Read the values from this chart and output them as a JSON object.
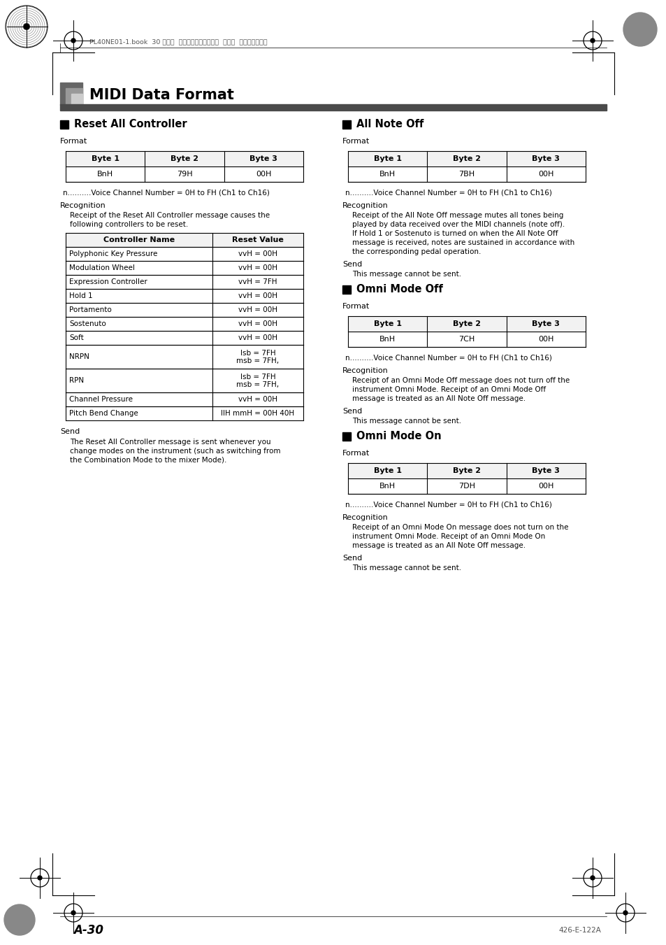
{
  "page_header": "PL40NE01-1.book  30 ページ  ２００２年７月２３日  火曜日  午後６時５２分",
  "title": "MIDI Data Format",
  "page_footer_left": "A-30",
  "page_footer_right": "426-E-122A",
  "left_col": {
    "section_title": "Reset All Controller",
    "format_label": "Format",
    "table1_headers": [
      "Byte 1",
      "Byte 2",
      "Byte 3"
    ],
    "table1_data": [
      [
        "BnH",
        "79H",
        "00H"
      ]
    ],
    "note1": "n..........Voice Channel Number = 0H to FH (Ch1 to Ch16)",
    "recognition_label": "Recognition",
    "recognition_text": "Receipt of the Reset All Controller message causes the\nfollowing controllers to be reset.",
    "table2_headers": [
      "Controller Name",
      "Reset Value"
    ],
    "table2_data": [
      [
        "Polyphonic Key Pressure",
        "vvH = 00H"
      ],
      [
        "Modulation Wheel",
        "vvH = 00H"
      ],
      [
        "Expression Controller",
        "vvH = 7FH"
      ],
      [
        "Hold 1",
        "vvH = 00H"
      ],
      [
        "Portamento",
        "vvH = 00H"
      ],
      [
        "Sostenuto",
        "vvH = 00H"
      ],
      [
        "Soft",
        "vvH = 00H"
      ],
      [
        "NRPN",
        "msb = 7FH,\nlsb = 7FH"
      ],
      [
        "RPN",
        "msb = 7FH,\nlsb = 7FH"
      ],
      [
        "Channel Pressure",
        "vvH = 00H"
      ],
      [
        "Pitch Bend Change",
        "llH mmH = 00H 40H"
      ]
    ],
    "send_label": "Send",
    "send_text": "The Reset All Controller message is sent whenever you\nchange modes on the instrument (such as switching from\nthe Combination Mode to the mixer Mode)."
  },
  "right_col": {
    "section1_title": "All Note Off",
    "format_label": "Format",
    "table1_headers": [
      "Byte 1",
      "Byte 2",
      "Byte 3"
    ],
    "table1_data": [
      [
        "BnH",
        "7BH",
        "00H"
      ]
    ],
    "note1": "n..........Voice Channel Number = 0H to FH (Ch1 to Ch16)",
    "recognition_label": "Recognition",
    "recognition_text": "Receipt of the All Note Off message mutes all tones being\nplayed by data received over the MIDI channels (note off).\nIf Hold 1 or Sostenuto is turned on when the All Note Off\nmessage is received, notes are sustained in accordance with\nthe corresponding pedal operation.",
    "send_label": "Send",
    "send_text": "This message cannot be sent.",
    "section2_title": "Omni Mode Off",
    "format_label2": "Format",
    "table2_headers": [
      "Byte 1",
      "Byte 2",
      "Byte 3"
    ],
    "table2_data": [
      [
        "BnH",
        "7CH",
        "00H"
      ]
    ],
    "note2": "n..........Voice Channel Number = 0H to FH (Ch1 to Ch16)",
    "recognition_label2": "Recognition",
    "recognition_text2": "Receipt of an Omni Mode Off message does not turn off the\ninstrument Omni Mode. Receipt of an Omni Mode Off\nmessage is treated as an All Note Off message.",
    "send_label2": "Send",
    "send_text2": "This message cannot be sent.",
    "section3_title": "Omni Mode On",
    "format_label3": "Format",
    "table3_headers": [
      "Byte 1",
      "Byte 2",
      "Byte 3"
    ],
    "table3_data": [
      [
        "BnH",
        "7DH",
        "00H"
      ]
    ],
    "note3": "n..........Voice Channel Number = 0H to FH (Ch1 to Ch16)",
    "recognition_label3": "Recognition",
    "recognition_text3": "Receipt of an Omni Mode On message does not turn on the\ninstrument Omni Mode. Receipt of an Omni Mode On\nmessage is treated as an All Note Off message.",
    "send_label3": "Send",
    "send_text3": "This message cannot be sent."
  },
  "bg_color": "#ffffff",
  "text_color": "#000000",
  "header_bar_color": "#555555",
  "font_size_body": 8.0,
  "font_size_small": 7.5,
  "font_size_section": 10.5,
  "font_size_title": 15
}
